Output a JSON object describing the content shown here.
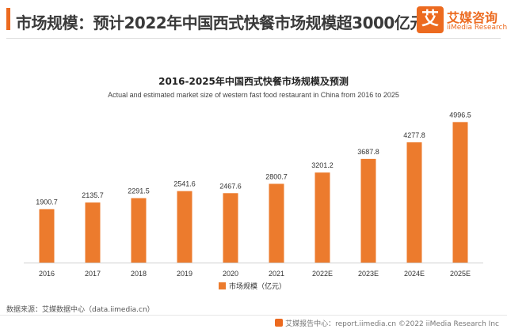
{
  "header": {
    "title": "市场规模：预计2022年中国西式快餐市场规模超3000亿元"
  },
  "brand": {
    "logo_mark": "艾",
    "name_cn": "艾媒咨询",
    "name_en": "iiMedia Research",
    "accent_color": "#ec6a1f"
  },
  "chart_data": {
    "type": "bar",
    "title": "2016-2025年中国西式快餐市场规模及预测",
    "subtitle": "Actual and estimated market size of western fast food restaurant in China from 2016 to 2025",
    "categories": [
      "2016",
      "2017",
      "2018",
      "2019",
      "2020",
      "2021",
      "2022E",
      "2023E",
      "2024E",
      "2025E"
    ],
    "series": [
      {
        "name": "市场规模（亿元）",
        "values": [
          1900.7,
          2135.7,
          2291.5,
          2541.6,
          2467.6,
          2800.7,
          3201.2,
          3687.8,
          4277.8,
          4996.5
        ],
        "value_labels": [
          "1900.7",
          "2135.7",
          "2291.5",
          "2541.6",
          "2467.6",
          "2800.7",
          "3201.2",
          "3687.8",
          "4277.8",
          "4996.5"
        ],
        "color": "#ec7b2d"
      }
    ],
    "xlabel": "",
    "ylabel": "",
    "ylim": [
      0,
      5400
    ],
    "grid": false,
    "legend_position": "bottom"
  },
  "source": "数据来源：艾媒数据中心（data.iimedia.cn）",
  "footer": "艾媒报告中心：report.iimedia.cn  ©2022 iiMedia Research Inc"
}
